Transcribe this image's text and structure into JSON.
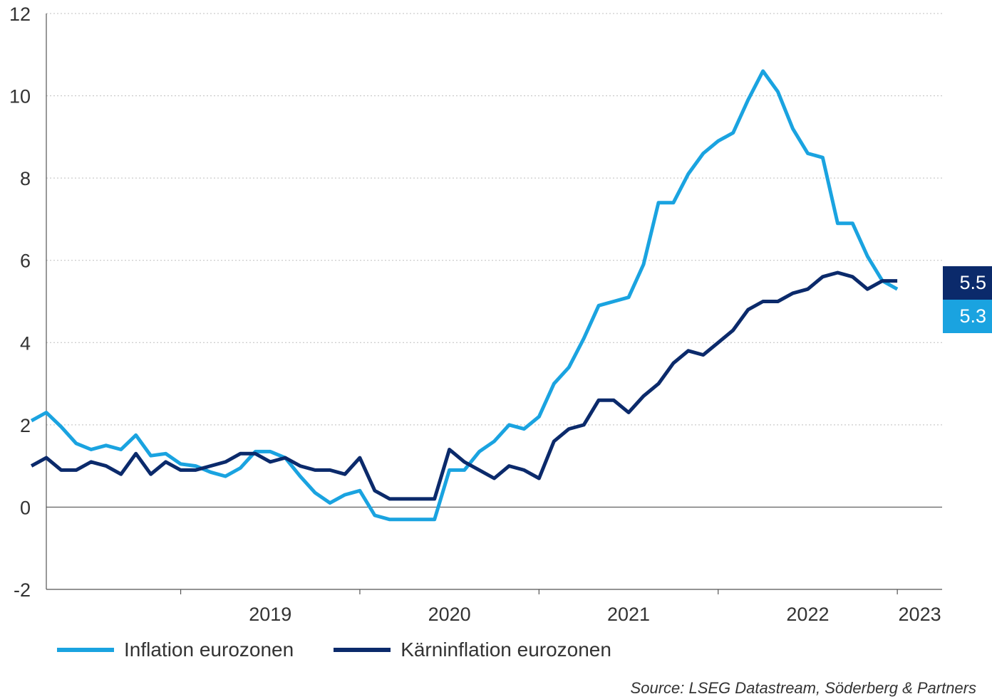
{
  "chart_data": {
    "type": "line",
    "xlim": [
      2018.25,
      2023.25
    ],
    "ylim": [
      -2,
      12
    ],
    "yticks": [
      -2,
      0,
      2,
      4,
      6,
      8,
      10,
      12
    ],
    "xtick_labels": [
      "2019",
      "2020",
      "2021",
      "2022",
      "2023"
    ],
    "grid": true,
    "legend_position": "bottom",
    "colors": {
      "inflation": "#1aa3e0",
      "core": "#0b2a6b",
      "grid": "#bfbfbf",
      "axis": "#555555"
    },
    "series": [
      {
        "name": "Inflation eurozonen",
        "start": "2018-03",
        "values": [
          2.1,
          2.3,
          1.95,
          1.55,
          1.4,
          1.5,
          1.4,
          1.75,
          1.25,
          1.3,
          1.05,
          1.0,
          0.85,
          0.75,
          0.95,
          1.35,
          1.35,
          1.2,
          0.75,
          0.35,
          0.1,
          0.3,
          0.4,
          -0.2,
          -0.3,
          -0.3,
          -0.3,
          -0.3,
          0.9,
          0.9,
          1.35,
          1.6,
          2.0,
          1.9,
          2.2,
          3.0,
          3.4,
          4.1,
          4.9,
          5.0,
          5.1,
          5.9,
          7.4,
          7.4,
          8.1,
          8.6,
          8.9,
          9.1,
          9.9,
          10.6,
          10.1,
          9.2,
          8.6,
          8.5,
          6.9,
          6.9,
          6.1,
          5.5,
          5.3
        ],
        "end_label": "5.3"
      },
      {
        "name": "Kärninflation eurozonen",
        "start": "2018-03",
        "values": [
          1.0,
          1.2,
          0.9,
          0.9,
          1.1,
          1.0,
          0.8,
          1.3,
          0.8,
          1.1,
          0.9,
          0.9,
          1.0,
          1.1,
          1.3,
          1.3,
          1.1,
          1.2,
          1.0,
          0.9,
          0.9,
          0.8,
          1.2,
          0.4,
          0.2,
          0.2,
          0.2,
          0.2,
          1.4,
          1.1,
          0.9,
          0.7,
          1.0,
          0.9,
          0.7,
          1.6,
          1.9,
          2.0,
          2.6,
          2.6,
          2.3,
          2.7,
          3.0,
          3.5,
          3.8,
          3.7,
          4.0,
          4.3,
          4.8,
          5.0,
          5.0,
          5.2,
          5.3,
          5.6,
          5.7,
          5.6,
          5.3,
          5.5,
          5.5
        ],
        "end_label": "5.5"
      }
    ],
    "source": "Source: LSEG Datastream, Söderberg & Partners"
  }
}
